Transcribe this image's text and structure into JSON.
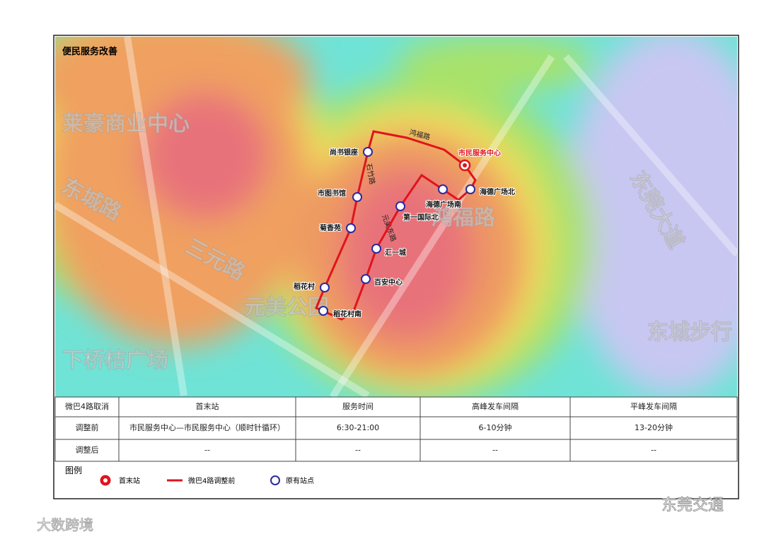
{
  "header": {
    "title": "便民服务改善"
  },
  "map": {
    "base_labels": [
      "莱豪商业中心",
      "东城路",
      "三元路",
      "元美公园",
      "下桥桔广场",
      "鸿福路",
      "东莞大道",
      "东城步行"
    ],
    "road_labels": [
      "鸿福路",
      "石竹路",
      "元美东路"
    ],
    "terminal": "市民服务中心",
    "stations": [
      "尚书银座",
      "市图书馆",
      "菊香苑",
      "稻花村",
      "稻花村南",
      "百安中心",
      "汇一城",
      "第一国际北",
      "海德广场南",
      "海德广场北"
    ]
  },
  "table": {
    "header": [
      "微巴4路取消",
      "首末站",
      "服务时间",
      "高峰发车间隔",
      "平峰发车间隔"
    ],
    "rows": [
      [
        "调整前",
        "市民服务中心—市民服务中心（顺时针循环）",
        "6:30-21:00",
        "6-10分钟",
        "13-20分钟"
      ],
      [
        "调整后",
        "--",
        "--",
        "--",
        "--"
      ]
    ]
  },
  "legend": {
    "title": "图例",
    "items": [
      "首末站",
      "微巴4路调整前",
      "原有站点"
    ]
  },
  "watermarks": [
    "东莞交通",
    "大数跨境"
  ]
}
